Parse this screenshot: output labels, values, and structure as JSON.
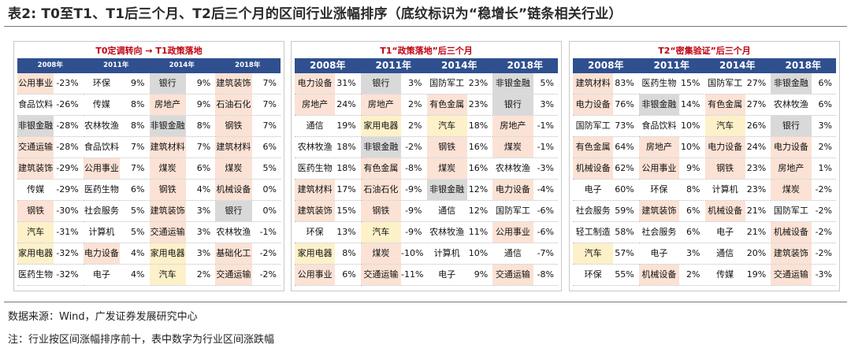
{
  "caption": "表2:  T0至T1、T1后三个月、T2后三个月的区间行业涨幅排序（底纹标识为“稳增长”链条相关行业）",
  "colors": {
    "header": "#2f4f8f",
    "shade_pink": "#fbe2d5",
    "shade_yellow": "#fdf1c9",
    "shade_gray": "#d9d9d9",
    "title_red": "#c0000f"
  },
  "panels": [
    {
      "title": "T0定调转向 → T1政策落地",
      "years": [
        "2008年",
        "2011年",
        "2014年",
        "2018年"
      ],
      "rows": [
        [
          [
            "公用事业",
            "-23%",
            "pink"
          ],
          [
            "环保",
            "9%",
            ""
          ],
          [
            "银行",
            "9%",
            "gray"
          ],
          [
            "建筑装饰",
            "7%",
            "pink"
          ]
        ],
        [
          [
            "食品饮料",
            "-26%",
            ""
          ],
          [
            "传媒",
            "8%",
            ""
          ],
          [
            "房地产",
            "9%",
            "pink"
          ],
          [
            "石油石化",
            "7%",
            "pink"
          ]
        ],
        [
          [
            "非银金融",
            "-28%",
            "gray"
          ],
          [
            "农林牧渔",
            "8%",
            ""
          ],
          [
            "非银金融",
            "8%",
            "gray"
          ],
          [
            "钢铁",
            "7%",
            "pink"
          ]
        ],
        [
          [
            "交通运输",
            "-28%",
            "pink"
          ],
          [
            "食品饮料",
            "7%",
            ""
          ],
          [
            "建筑材料",
            "7%",
            "pink"
          ],
          [
            "建筑材料",
            "6%",
            "pink"
          ]
        ],
        [
          [
            "建筑装饰",
            "-29%",
            "pink"
          ],
          [
            "公用事业",
            "7%",
            "pink"
          ],
          [
            "煤炭",
            "6%",
            "pink"
          ],
          [
            "煤炭",
            "5%",
            "pink"
          ]
        ],
        [
          [
            "传媒",
            "-29%",
            ""
          ],
          [
            "医药生物",
            "6%",
            ""
          ],
          [
            "钢铁",
            "4%",
            "pink"
          ],
          [
            "机械设备",
            "0%",
            "pink"
          ]
        ],
        [
          [
            "钢铁",
            "-30%",
            "pink"
          ],
          [
            "社会服务",
            "5%",
            ""
          ],
          [
            "建筑装饰",
            "3%",
            "pink"
          ],
          [
            "银行",
            "0%",
            "gray"
          ]
        ],
        [
          [
            "汽车",
            "-31%",
            "yellow"
          ],
          [
            "计算机",
            "5%",
            ""
          ],
          [
            "交通运输",
            "3%",
            "pink"
          ],
          [
            "农林牧渔",
            "-1%",
            ""
          ]
        ],
        [
          [
            "家用电器",
            "-32%",
            "yellow"
          ],
          [
            "电力设备",
            "4%",
            "pink"
          ],
          [
            "家用电器",
            "3%",
            "yellow"
          ],
          [
            "基础化工",
            "-2%",
            "pink"
          ]
        ],
        [
          [
            "医药生物",
            "-32%",
            ""
          ],
          [
            "电子",
            "4%",
            ""
          ],
          [
            "汽车",
            "2%",
            "yellow"
          ],
          [
            "交通运输",
            "-2%",
            "pink"
          ]
        ]
      ]
    },
    {
      "title": "T1“政策落地”后三个月",
      "years": [
        "2008年",
        "2011年",
        "2014年",
        "2018年"
      ],
      "rows": [
        [
          [
            "电力设备",
            "31%",
            "pink"
          ],
          [
            "银行",
            "3%",
            "gray"
          ],
          [
            "国防军工",
            "23%",
            ""
          ],
          [
            "非银金融",
            "5%",
            "gray"
          ]
        ],
        [
          [
            "房地产",
            "24%",
            "pink"
          ],
          [
            "房地产",
            "2%",
            "pink"
          ],
          [
            "有色金属",
            "23%",
            "pink"
          ],
          [
            "银行",
            "3%",
            "gray"
          ]
        ],
        [
          [
            "通信",
            "19%",
            ""
          ],
          [
            "家用电器",
            "2%",
            "yellow"
          ],
          [
            "汽车",
            "18%",
            "yellow"
          ],
          [
            "房地产",
            "-1%",
            "pink"
          ]
        ],
        [
          [
            "农林牧渔",
            "18%",
            ""
          ],
          [
            "非银金融",
            "-2%",
            "gray"
          ],
          [
            "钢铁",
            "16%",
            "pink"
          ],
          [
            "煤炭",
            "-1%",
            "pink"
          ]
        ],
        [
          [
            "医药生物",
            "18%",
            ""
          ],
          [
            "有色金属",
            "-8%",
            "pink"
          ],
          [
            "煤炭",
            "16%",
            "pink"
          ],
          [
            "农林牧渔",
            "-3%",
            ""
          ]
        ],
        [
          [
            "建筑材料",
            "17%",
            "pink"
          ],
          [
            "石油石化",
            "-9%",
            "pink"
          ],
          [
            "非银金融",
            "12%",
            "gray"
          ],
          [
            "电力设备",
            "-4%",
            "pink"
          ]
        ],
        [
          [
            "建筑装饰",
            "15%",
            "pink"
          ],
          [
            "钢铁",
            "-9%",
            "pink"
          ],
          [
            "通信",
            "12%",
            ""
          ],
          [
            "国防军工",
            "-6%",
            ""
          ]
        ],
        [
          [
            "环保",
            "13%",
            ""
          ],
          [
            "汽车",
            "-9%",
            "yellow"
          ],
          [
            "农林牧渔",
            "11%",
            ""
          ],
          [
            "公用事业",
            "-6%",
            "pink"
          ]
        ],
        [
          [
            "家用电器",
            "8%",
            "yellow"
          ],
          [
            "煤炭",
            "-10%",
            "pink"
          ],
          [
            "计算机",
            "10%",
            ""
          ],
          [
            "通信",
            "-7%",
            ""
          ]
        ],
        [
          [
            "公用事业",
            "6%",
            "pink"
          ],
          [
            "交通运输",
            "-11%",
            "pink"
          ],
          [
            "电子",
            "9%",
            ""
          ],
          [
            "交通运输",
            "-8%",
            "pink"
          ]
        ]
      ]
    },
    {
      "title": "T2“密集验证”后三个月",
      "years": [
        "2008年",
        "2011年",
        "2014年",
        "2018年"
      ],
      "rows": [
        [
          [
            "建筑材料",
            "83%",
            "pink"
          ],
          [
            "医药生物",
            "15%",
            ""
          ],
          [
            "国防军工",
            "27%",
            ""
          ],
          [
            "非银金融",
            "6%",
            "gray"
          ]
        ],
        [
          [
            "电力设备",
            "76%",
            "pink"
          ],
          [
            "非银金融",
            "14%",
            "gray"
          ],
          [
            "有色金属",
            "27%",
            "pink"
          ],
          [
            "农林牧渔",
            "6%",
            ""
          ]
        ],
        [
          [
            "国防军工",
            "73%",
            ""
          ],
          [
            "食品饮料",
            "10%",
            ""
          ],
          [
            "汽车",
            "26%",
            "yellow"
          ],
          [
            "银行",
            "3%",
            "gray"
          ]
        ],
        [
          [
            "有色金属",
            "64%",
            "pink"
          ],
          [
            "房地产",
            "10%",
            "pink"
          ],
          [
            "电力设备",
            "24%",
            "pink"
          ],
          [
            "电力设备",
            "2%",
            "pink"
          ]
        ],
        [
          [
            "机械设备",
            "62%",
            "pink"
          ],
          [
            "公用事业",
            "9%",
            "pink"
          ],
          [
            "钢铁",
            "23%",
            "pink"
          ],
          [
            "房地产",
            "1%",
            "pink"
          ]
        ],
        [
          [
            "电子",
            "60%",
            ""
          ],
          [
            "环保",
            "8%",
            ""
          ],
          [
            "计算机",
            "23%",
            ""
          ],
          [
            "煤炭",
            "-2%",
            "pink"
          ]
        ],
        [
          [
            "社会服务",
            "59%",
            ""
          ],
          [
            "建筑装饰",
            "6%",
            "pink"
          ],
          [
            "机械设备",
            "21%",
            "pink"
          ],
          [
            "国防军工",
            "-2%",
            ""
          ]
        ],
        [
          [
            "轻工制造",
            "58%",
            ""
          ],
          [
            "社会服务",
            "6%",
            ""
          ],
          [
            "电子",
            "21%",
            ""
          ],
          [
            "机械设备",
            "-2%",
            "pink"
          ]
        ],
        [
          [
            "汽车",
            "57%",
            "yellow"
          ],
          [
            "电子",
            "3%",
            ""
          ],
          [
            "通信",
            "20%",
            ""
          ],
          [
            "建筑装饰",
            "-2%",
            "pink"
          ]
        ],
        [
          [
            "环保",
            "55%",
            ""
          ],
          [
            "机械设备",
            "2%",
            "pink"
          ],
          [
            "传媒",
            "19%",
            ""
          ],
          [
            "交通运输",
            "-3%",
            "pink"
          ]
        ]
      ]
    }
  ],
  "source": "数据来源：Wind，广发证券发展研究中心",
  "note": "注：行业按区间涨幅排序前十，表中数字为行业区间涨跌幅"
}
